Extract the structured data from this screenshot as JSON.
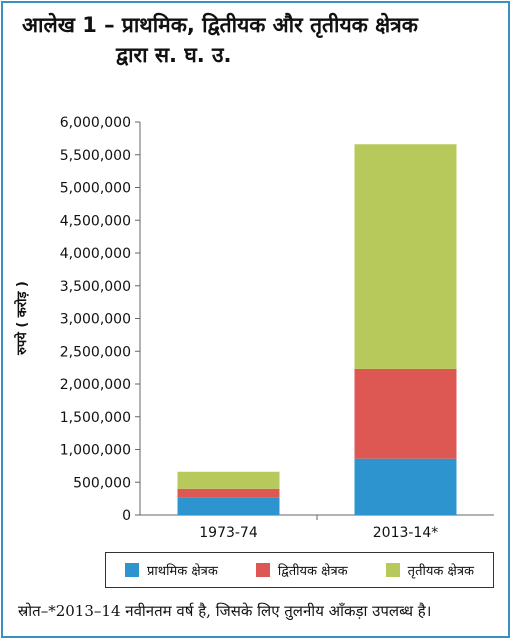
{
  "title": {
    "line1": "आलेख 1 – प्राथमिक, द्वितीयक और तृतीयक क्षेत्रक",
    "line2": "द्वारा स. घ. उ."
  },
  "colors": {
    "primary": "#2e94cf",
    "secondary": "#dd5753",
    "tertiary": "#b6c95a",
    "frame": "#3d8fbd"
  },
  "chart_data": {
    "type": "bar",
    "stacked": true,
    "categories": [
      "1973-74",
      "2013-14*"
    ],
    "series": [
      {
        "name": "प्राथमिक क्षेत्रक",
        "values": [
          270000,
          860000
        ]
      },
      {
        "name": "द्वितीयक क्षेत्रक",
        "values": [
          130000,
          1370000
        ]
      },
      {
        "name": "तृतीयक क्षेत्रक",
        "values": [
          260000,
          3430000
        ]
      }
    ],
    "ylabel": "रुपये ( करोड़ )",
    "ylim": [
      0,
      6000000
    ],
    "yticks": [
      "0",
      "500,000",
      "1,000,000",
      "1,500,000",
      "2,000,000",
      "2,500,000",
      "3,000,000",
      "3,500,000",
      "4,000,000",
      "4,500,000",
      "5,000,000",
      "5,500,000",
      "6,000,000"
    ],
    "grid": false,
    "legend_position": "bottom"
  },
  "source": "स्रोत–*2013–14 नवीनतम वर्ष है, जिसके लिए तुलनीय आँकड़ा उपलब्ध है।"
}
